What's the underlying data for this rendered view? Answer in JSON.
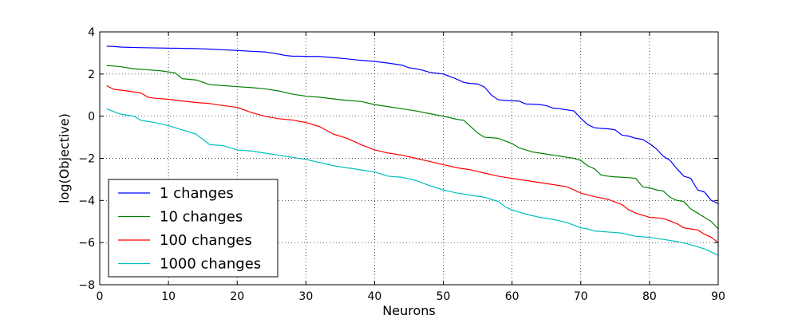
{
  "chart_data": {
    "type": "line",
    "title": "",
    "xlabel": "Neurons",
    "ylabel": "log(Objective)",
    "xlim": [
      0,
      90
    ],
    "ylim": [
      -8,
      4
    ],
    "xticks": [
      0,
      10,
      20,
      30,
      40,
      50,
      60,
      70,
      80,
      90
    ],
    "yticks": [
      -8,
      -6,
      -4,
      -2,
      0,
      2,
      4
    ],
    "xtick_labels": [
      "0",
      "10",
      "20",
      "30",
      "40",
      "50",
      "60",
      "70",
      "80",
      "90"
    ],
    "ytick_labels": [
      "−8",
      "−6",
      "−4",
      "−2",
      "0",
      "2",
      "4"
    ],
    "grid": true,
    "legend_position": "lower-left",
    "series": [
      {
        "name": "1 changes",
        "color": "#0000ff",
        "x": [
          1,
          2,
          3,
          5,
          8,
          10,
          12,
          14,
          16,
          18,
          20,
          22,
          24,
          25,
          26,
          27,
          28,
          30,
          32,
          34,
          36,
          38,
          40,
          42,
          44,
          45,
          46,
          47,
          48,
          50,
          51,
          52,
          53,
          54,
          55,
          56,
          57,
          58,
          59,
          60,
          61,
          62,
          63,
          64,
          65,
          66,
          67,
          68,
          69,
          70,
          71,
          72,
          73,
          74,
          75,
          76,
          77,
          78,
          79,
          80,
          81,
          82,
          83,
          84,
          85,
          86,
          87,
          88,
          89,
          90
        ],
        "values": [
          3.32,
          3.31,
          3.28,
          3.26,
          3.24,
          3.23,
          3.22,
          3.21,
          3.18,
          3.15,
          3.12,
          3.08,
          3.05,
          3.0,
          2.95,
          2.88,
          2.85,
          2.84,
          2.83,
          2.78,
          2.72,
          2.65,
          2.6,
          2.52,
          2.42,
          2.3,
          2.25,
          2.18,
          2.08,
          2.0,
          1.88,
          1.75,
          1.6,
          1.55,
          1.53,
          1.38,
          1.0,
          0.78,
          0.75,
          0.73,
          0.72,
          0.58,
          0.57,
          0.55,
          0.5,
          0.38,
          0.35,
          0.3,
          0.25,
          -0.1,
          -0.4,
          -0.55,
          -0.58,
          -0.6,
          -0.65,
          -0.9,
          -0.95,
          -1.05,
          -1.1,
          -1.3,
          -1.55,
          -1.9,
          -2.1,
          -2.5,
          -2.85,
          -2.95,
          -3.5,
          -3.6,
          -4.0,
          -4.15
        ]
      },
      {
        "name": "10 changes",
        "color": "#008000",
        "x": [
          1,
          2,
          3,
          4,
          5,
          7,
          9,
          10,
          11,
          12,
          14,
          16,
          18,
          20,
          22,
          24,
          26,
          28,
          30,
          32,
          34,
          36,
          38,
          40,
          42,
          44,
          46,
          48,
          50,
          52,
          53,
          54,
          55,
          56,
          58,
          60,
          61,
          62,
          63,
          64,
          65,
          66,
          67,
          68,
          69,
          70,
          71,
          72,
          73,
          74,
          75,
          76,
          77,
          78,
          79,
          80,
          81,
          82,
          83,
          84,
          85,
          86,
          87,
          88,
          89,
          90
        ],
        "values": [
          2.4,
          2.38,
          2.35,
          2.3,
          2.25,
          2.2,
          2.15,
          2.1,
          2.05,
          1.78,
          1.72,
          1.5,
          1.45,
          1.4,
          1.36,
          1.3,
          1.2,
          1.05,
          0.95,
          0.9,
          0.82,
          0.75,
          0.7,
          0.55,
          0.45,
          0.35,
          0.25,
          0.12,
          0.0,
          -0.15,
          -0.2,
          -0.5,
          -0.8,
          -1.0,
          -1.05,
          -1.3,
          -1.5,
          -1.6,
          -1.7,
          -1.75,
          -1.8,
          -1.85,
          -1.9,
          -1.95,
          -2.0,
          -2.1,
          -2.35,
          -2.5,
          -2.8,
          -2.85,
          -2.88,
          -2.9,
          -2.92,
          -2.95,
          -3.35,
          -3.4,
          -3.5,
          -3.55,
          -3.85,
          -4.0,
          -4.05,
          -4.4,
          -4.6,
          -4.8,
          -5.0,
          -5.35
        ]
      },
      {
        "name": "100 changes",
        "color": "#ff0000",
        "x": [
          1,
          2,
          4,
          6,
          7,
          8,
          10,
          12,
          14,
          16,
          18,
          20,
          22,
          24,
          26,
          28,
          30,
          32,
          34,
          36,
          38,
          40,
          42,
          44,
          46,
          48,
          50,
          52,
          54,
          56,
          58,
          60,
          62,
          64,
          66,
          68,
          70,
          72,
          74,
          76,
          77,
          78,
          79,
          80,
          82,
          84,
          85,
          86,
          87,
          88,
          89,
          90
        ],
        "values": [
          1.45,
          1.28,
          1.2,
          1.1,
          0.9,
          0.85,
          0.8,
          0.72,
          0.65,
          0.6,
          0.5,
          0.42,
          0.18,
          0.0,
          -0.12,
          -0.18,
          -0.3,
          -0.5,
          -0.85,
          -1.05,
          -1.35,
          -1.6,
          -1.75,
          -1.85,
          -2.0,
          -2.15,
          -2.3,
          -2.45,
          -2.55,
          -2.7,
          -2.85,
          -2.95,
          -3.05,
          -3.15,
          -3.25,
          -3.35,
          -3.65,
          -3.82,
          -3.95,
          -4.2,
          -4.45,
          -4.6,
          -4.7,
          -4.8,
          -4.85,
          -5.1,
          -5.3,
          -5.35,
          -5.4,
          -5.6,
          -5.75,
          -6.0
        ]
      },
      {
        "name": "1000 changes",
        "color": "#00bfbf",
        "x": [
          1,
          2,
          3,
          4,
          5,
          6,
          7,
          8,
          10,
          12,
          14,
          16,
          18,
          20,
          22,
          24,
          26,
          28,
          30,
          32,
          34,
          36,
          38,
          40,
          42,
          44,
          46,
          48,
          50,
          52,
          54,
          56,
          57,
          58,
          59,
          60,
          62,
          64,
          66,
          68,
          70,
          71,
          72,
          74,
          76,
          78,
          80,
          82,
          84,
          86,
          88,
          89,
          90
        ],
        "values": [
          0.35,
          0.22,
          0.1,
          0.05,
          0.0,
          -0.2,
          -0.25,
          -0.3,
          -0.45,
          -0.65,
          -0.85,
          -1.35,
          -1.4,
          -1.6,
          -1.65,
          -1.75,
          -1.85,
          -1.95,
          -2.05,
          -2.2,
          -2.35,
          -2.45,
          -2.55,
          -2.65,
          -2.85,
          -2.9,
          -3.05,
          -3.3,
          -3.5,
          -3.65,
          -3.75,
          -3.85,
          -3.95,
          -4.05,
          -4.3,
          -4.45,
          -4.65,
          -4.8,
          -4.9,
          -5.05,
          -5.3,
          -5.35,
          -5.45,
          -5.5,
          -5.55,
          -5.7,
          -5.75,
          -5.85,
          -5.95,
          -6.1,
          -6.3,
          -6.45,
          -6.6
        ]
      }
    ]
  }
}
